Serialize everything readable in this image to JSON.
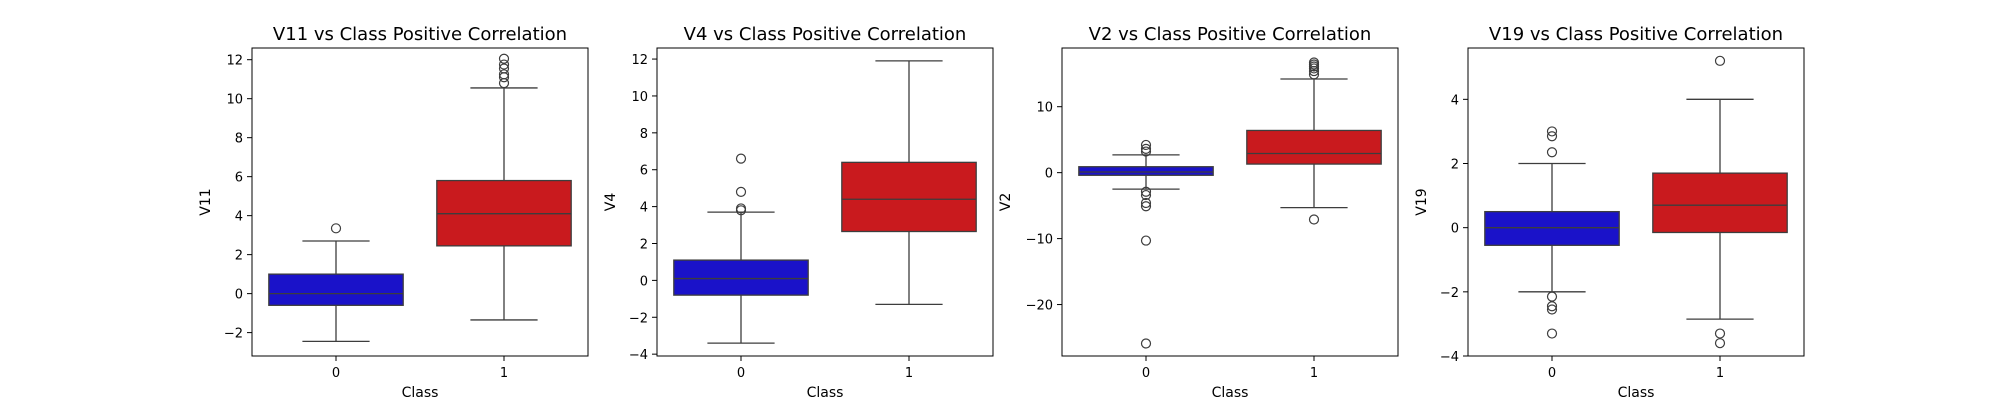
{
  "chart_data": [
    {
      "type": "box",
      "title": "V11 vs Class Positive Correlation",
      "xlabel": "Class",
      "ylabel": "V11",
      "categories": [
        "0",
        "1"
      ],
      "ylim": [
        -3.2,
        12.6
      ],
      "yticks": [
        -2,
        0,
        2,
        4,
        6,
        8,
        10,
        12
      ],
      "colors": [
        "#1a12c9",
        "#c91a1e"
      ],
      "boxes": [
        {
          "category": "0",
          "whisker_low": -2.45,
          "q1": -0.6,
          "median": 0.0,
          "q3": 1.0,
          "whisker_high": 2.7,
          "outliers": [
            3.35
          ]
        },
        {
          "category": "1",
          "whisker_low": -1.35,
          "q1": 2.45,
          "median": 4.1,
          "q3": 5.8,
          "whisker_high": 10.55,
          "outliers": [
            10.8,
            11.1,
            11.25,
            11.55,
            11.75,
            12.05
          ]
        }
      ]
    },
    {
      "type": "box",
      "title": "V4 vs Class Positive Correlation",
      "xlabel": "Class",
      "ylabel": "V4",
      "categories": [
        "0",
        "1"
      ],
      "ylim": [
        -4.1,
        12.6
      ],
      "yticks": [
        -4,
        -2,
        0,
        2,
        4,
        6,
        8,
        10,
        12
      ],
      "colors": [
        "#1a12c9",
        "#c91a1e"
      ],
      "boxes": [
        {
          "category": "0",
          "whisker_low": -3.4,
          "q1": -0.8,
          "median": 0.1,
          "q3": 1.1,
          "whisker_high": 3.7,
          "outliers": [
            3.8,
            3.9,
            4.8,
            6.6
          ]
        },
        {
          "category": "1",
          "whisker_low": -1.3,
          "q1": 2.65,
          "median": 4.4,
          "q3": 6.4,
          "whisker_high": 11.9,
          "outliers": []
        }
      ]
    },
    {
      "type": "box",
      "title": "V2 vs Class Positive Correlation",
      "xlabel": "Class",
      "ylabel": "V2",
      "categories": [
        "0",
        "1"
      ],
      "ylim": [
        -27.8,
        18.9
      ],
      "yticks": [
        -20,
        -10,
        0,
        10
      ],
      "colors": [
        "#1a12c9",
        "#c91a1e"
      ],
      "boxes": [
        {
          "category": "0",
          "whisker_low": -2.5,
          "q1": -0.4,
          "median": 0.1,
          "q3": 0.9,
          "whisker_high": 2.7,
          "outliers": [
            3.2,
            3.6,
            4.2,
            -2.9,
            -3.4,
            -4.6,
            -5.1,
            -10.3,
            -25.9
          ]
        },
        {
          "category": "1",
          "whisker_low": -5.3,
          "q1": 1.3,
          "median": 2.9,
          "q3": 6.4,
          "whisker_high": 14.2,
          "outliers": [
            14.9,
            15.4,
            15.8,
            16.1,
            16.4,
            16.7,
            -7.1
          ]
        }
      ]
    },
    {
      "type": "box",
      "title": "V19 vs Class Positive Correlation",
      "xlabel": "Class",
      "ylabel": "V19",
      "categories": [
        "0",
        "1"
      ],
      "ylim": [
        -4.0,
        5.6
      ],
      "yticks": [
        -4,
        -2,
        0,
        2,
        4
      ],
      "colors": [
        "#1a12c9",
        "#c91a1e"
      ],
      "boxes": [
        {
          "category": "0",
          "whisker_low": -2.0,
          "q1": -0.55,
          "median": 0.0,
          "q3": 0.5,
          "whisker_high": 2.0,
          "outliers": [
            2.35,
            2.85,
            3.0,
            -2.15,
            -2.45,
            -2.55,
            -3.3
          ]
        },
        {
          "category": "1",
          "whisker_low": -2.85,
          "q1": -0.15,
          "median": 0.7,
          "q3": 1.7,
          "whisker_high": 4.0,
          "outliers": [
            5.2,
            -3.3,
            -3.6
          ]
        }
      ]
    }
  ]
}
